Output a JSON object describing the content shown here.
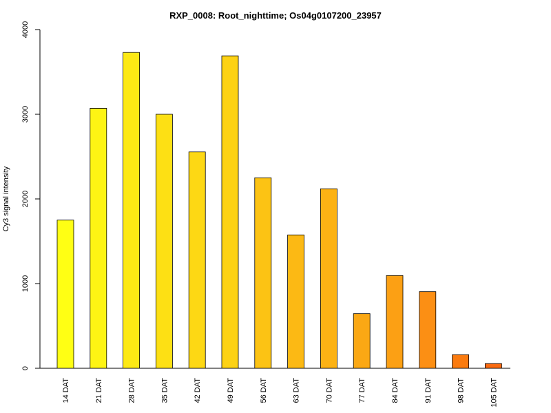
{
  "chart_data": {
    "type": "bar",
    "title": "RXP_0008: Root_nighttime; Os04g0107200_23957",
    "xlabel": "",
    "ylabel": "Cy3 signal intensity",
    "ylim": [
      0,
      4000
    ],
    "y_ticks": [
      0,
      1000,
      2000,
      3000,
      4000
    ],
    "grid": false,
    "legend": "none",
    "categories": [
      "14 DAT",
      "21 DAT",
      "28 DAT",
      "35 DAT",
      "42 DAT",
      "49 DAT",
      "56 DAT",
      "63 DAT",
      "70 DAT",
      "77 DAT",
      "84 DAT",
      "91 DAT",
      "98 DAT",
      "105 DAT"
    ],
    "values": [
      1750,
      3070,
      3730,
      3000,
      2555,
      3690,
      2250,
      1575,
      2120,
      645,
      1095,
      905,
      160,
      55
    ],
    "colors": [
      "#ffff14",
      "#fef414",
      "#fde914",
      "#fde014",
      "#fdd814",
      "#fdd214",
      "#fcc314",
      "#fcb914",
      "#fcb214",
      "#fba814",
      "#fca014",
      "#fc8f14",
      "#fb7b0f",
      "#fa6a10"
    ]
  }
}
